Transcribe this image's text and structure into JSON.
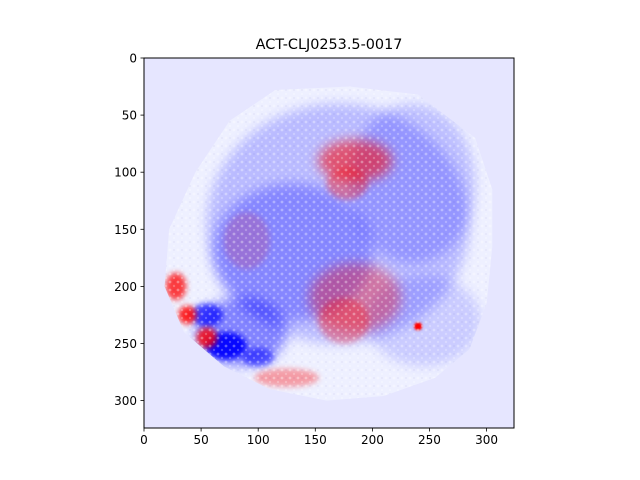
{
  "chart_data": {
    "type": "heatmap",
    "title": "ACT-CLJ0253.5-0017",
    "xlabel": "",
    "ylabel": "",
    "xlim": [
      0,
      324
    ],
    "ylim": [
      324,
      0
    ],
    "grid": false,
    "colormap": "bwr",
    "colors": {
      "background": "#e6e6ff",
      "negative": "#0000ff",
      "neutral": "#ffffff",
      "positive": "#ff0000"
    },
    "x_ticks": [
      {
        "value": 0,
        "label": "0"
      },
      {
        "value": 50,
        "label": "50"
      },
      {
        "value": 100,
        "label": "100"
      },
      {
        "value": 150,
        "label": "150"
      },
      {
        "value": 200,
        "label": "200"
      },
      {
        "value": 250,
        "label": "250"
      },
      {
        "value": 300,
        "label": "300"
      }
    ],
    "y_ticks": [
      {
        "value": 0,
        "label": "0"
      },
      {
        "value": 50,
        "label": "50"
      },
      {
        "value": 100,
        "label": "100"
      },
      {
        "value": 150,
        "label": "150"
      },
      {
        "value": 200,
        "label": "200"
      },
      {
        "value": 250,
        "label": "250"
      },
      {
        "value": 300,
        "label": "300"
      }
    ],
    "footprint_outline": [
      [
        115,
        28
      ],
      [
        180,
        25
      ],
      [
        240,
        32
      ],
      [
        290,
        70
      ],
      [
        305,
        115
      ],
      [
        305,
        165
      ],
      [
        300,
        215
      ],
      [
        285,
        255
      ],
      [
        255,
        280
      ],
      [
        210,
        296
      ],
      [
        160,
        300
      ],
      [
        110,
        290
      ],
      [
        70,
        270
      ],
      [
        35,
        240
      ],
      [
        18,
        200
      ],
      [
        22,
        150
      ],
      [
        45,
        100
      ],
      [
        75,
        55
      ]
    ],
    "features": [
      {
        "kind": "blob",
        "x": 170,
        "y": 145,
        "rx": 115,
        "ry": 105,
        "value": -0.22
      },
      {
        "kind": "blob",
        "x": 130,
        "y": 170,
        "rx": 70,
        "ry": 60,
        "value": -0.28
      },
      {
        "kind": "blob",
        "x": 235,
        "y": 110,
        "rx": 55,
        "ry": 70,
        "value": -0.2
      },
      {
        "kind": "blob",
        "x": 245,
        "y": 230,
        "rx": 50,
        "ry": 40,
        "value": -0.15
      },
      {
        "kind": "blob",
        "x": 85,
        "y": 240,
        "rx": 40,
        "ry": 30,
        "value": -0.45
      },
      {
        "kind": "blob",
        "x": 72,
        "y": 252,
        "rx": 18,
        "ry": 12,
        "value": -0.95
      },
      {
        "kind": "blob",
        "x": 55,
        "y": 225,
        "rx": 14,
        "ry": 10,
        "value": -0.7
      },
      {
        "kind": "blob",
        "x": 100,
        "y": 262,
        "rx": 14,
        "ry": 8,
        "value": -0.55
      },
      {
        "kind": "blob",
        "x": 185,
        "y": 90,
        "rx": 32,
        "ry": 18,
        "value": 0.55
      },
      {
        "kind": "blob",
        "x": 178,
        "y": 110,
        "rx": 18,
        "ry": 14,
        "value": 0.35
      },
      {
        "kind": "blob",
        "x": 185,
        "y": 210,
        "rx": 40,
        "ry": 30,
        "value": 0.35
      },
      {
        "kind": "blob",
        "x": 175,
        "y": 230,
        "rx": 22,
        "ry": 20,
        "value": 0.3
      },
      {
        "kind": "blob",
        "x": 28,
        "y": 200,
        "rx": 9,
        "ry": 12,
        "value": 0.75
      },
      {
        "kind": "blob",
        "x": 38,
        "y": 225,
        "rx": 8,
        "ry": 8,
        "value": 0.85
      },
      {
        "kind": "blob",
        "x": 55,
        "y": 245,
        "rx": 9,
        "ry": 9,
        "value": 0.8
      },
      {
        "kind": "blob",
        "x": 125,
        "y": 280,
        "rx": 28,
        "ry": 8,
        "value": 0.35
      },
      {
        "kind": "blob",
        "x": 90,
        "y": 160,
        "rx": 20,
        "ry": 25,
        "value": 0.15
      },
      {
        "kind": "blob",
        "x": 240,
        "y": 235,
        "rx": 3.5,
        "ry": 3.5,
        "value": 1.0
      }
    ]
  }
}
